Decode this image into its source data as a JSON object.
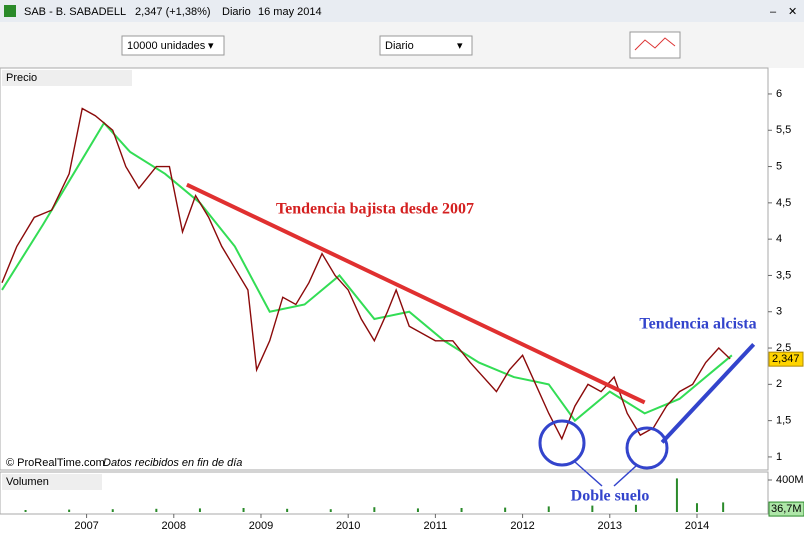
{
  "header": {
    "title": "SAB - B. SABADELL",
    "quote": "2,347 (+1,38%)",
    "period": "Diario",
    "date": "16 may 2014"
  },
  "toolbar": {
    "units": "10000 unidades",
    "period": "Diario"
  },
  "chart_data": [
    {
      "type": "line",
      "panel_title": "Precio",
      "credit": "© ProRealTime.com",
      "note": "Datos recibidos en fin de día",
      "xlim": [
        2006.03,
        2014.78
      ],
      "xticks": [
        2007,
        2008,
        2009,
        2010,
        2011,
        2012,
        2013,
        2014
      ],
      "ylim": [
        0.82,
        6.33
      ],
      "yticks": [
        1,
        {
          "value": 1.5,
          "label": "1,5"
        },
        2,
        {
          "value": 2.5,
          "label": "2,5"
        },
        3,
        {
          "value": 3.5,
          "label": "3,5"
        },
        4,
        {
          "value": 4.5,
          "label": "4,5"
        },
        5,
        {
          "value": 5.5,
          "label": "5,5"
        },
        6
      ],
      "series": [
        {
          "color": "#33dd55",
          "x": [
            2006.03,
            2006.5,
            2006.9,
            2007.2,
            2007.5,
            2007.9,
            2008.3,
            2008.7,
            2009.1,
            2009.5,
            2009.9,
            2010.3,
            2010.7,
            2011.1,
            2011.5,
            2011.9,
            2012.3,
            2012.6,
            2013.0,
            2013.4,
            2013.8,
            2014.2,
            2014.4
          ],
          "values": [
            3.3,
            4.2,
            5.0,
            5.6,
            5.2,
            4.9,
            4.5,
            3.9,
            3.0,
            3.1,
            3.5,
            2.9,
            3.0,
            2.6,
            2.3,
            2.1,
            2.0,
            1.5,
            1.9,
            1.6,
            1.8,
            2.2,
            2.4
          ]
        },
        {
          "color": "#8b0a0a",
          "x": [
            2006.03,
            2006.2,
            2006.4,
            2006.6,
            2006.8,
            2006.95,
            2007.1,
            2007.3,
            2007.45,
            2007.6,
            2007.8,
            2007.95,
            2008.1,
            2008.25,
            2008.4,
            2008.55,
            2008.7,
            2008.85,
            2008.95,
            2009.1,
            2009.25,
            2009.4,
            2009.55,
            2009.7,
            2009.85,
            2010.0,
            2010.15,
            2010.3,
            2010.45,
            2010.55,
            2010.7,
            2010.85,
            2011.0,
            2011.2,
            2011.4,
            2011.55,
            2011.7,
            2011.85,
            2012.0,
            2012.15,
            2012.3,
            2012.45,
            2012.6,
            2012.75,
            2012.9,
            2013.05,
            2013.2,
            2013.35,
            2013.5,
            2013.65,
            2013.8,
            2013.95,
            2014.1,
            2014.25,
            2014.38
          ],
          "values": [
            3.4,
            3.9,
            4.3,
            4.4,
            4.9,
            5.8,
            5.7,
            5.5,
            5.0,
            4.7,
            5.0,
            5.0,
            4.1,
            4.6,
            4.3,
            3.9,
            3.6,
            3.3,
            2.2,
            2.6,
            3.2,
            3.1,
            3.4,
            3.8,
            3.5,
            3.3,
            2.9,
            2.6,
            3.0,
            3.3,
            2.8,
            2.7,
            2.6,
            2.6,
            2.3,
            2.1,
            1.9,
            2.2,
            2.4,
            2.0,
            1.6,
            1.25,
            1.7,
            2.0,
            1.9,
            2.1,
            1.6,
            1.3,
            1.4,
            1.7,
            1.9,
            2.0,
            2.3,
            2.5,
            2.35
          ]
        }
      ],
      "trendlines": [
        {
          "color": "#e03030",
          "x": [
            2008.15,
            2013.4
          ],
          "y": [
            4.75,
            1.75
          ]
        },
        {
          "color": "#3344cc",
          "x": [
            2013.6,
            2014.65
          ],
          "y": [
            1.2,
            2.55
          ]
        }
      ],
      "annotations": [
        "Tendencia bajista desde 2007",
        "Tendencia alcista",
        "Doble suelo"
      ],
      "price_marker": {
        "value": 2.347,
        "label": "2,347"
      }
    },
    {
      "type": "bar",
      "panel_title": "Volumen",
      "color": "#2a8a2a",
      "xlim": [
        2006.03,
        2014.78
      ],
      "ylim": [
        0,
        450
      ],
      "yticks": [
        {
          "value": 400,
          "label": "400M"
        }
      ],
      "x": [
        2006.3,
        2006.8,
        2007.3,
        2007.8,
        2008.3,
        2008.8,
        2009.3,
        2009.8,
        2010.3,
        2010.8,
        2011.3,
        2011.8,
        2012.3,
        2012.8,
        2013.3,
        2013.77,
        2014.0,
        2014.3
      ],
      "values": [
        25,
        30,
        35,
        40,
        45,
        50,
        40,
        35,
        60,
        45,
        50,
        55,
        70,
        80,
        90,
        420,
        110,
        120
      ],
      "last_value": {
        "value": 36.7,
        "label": "36,7M"
      }
    }
  ]
}
